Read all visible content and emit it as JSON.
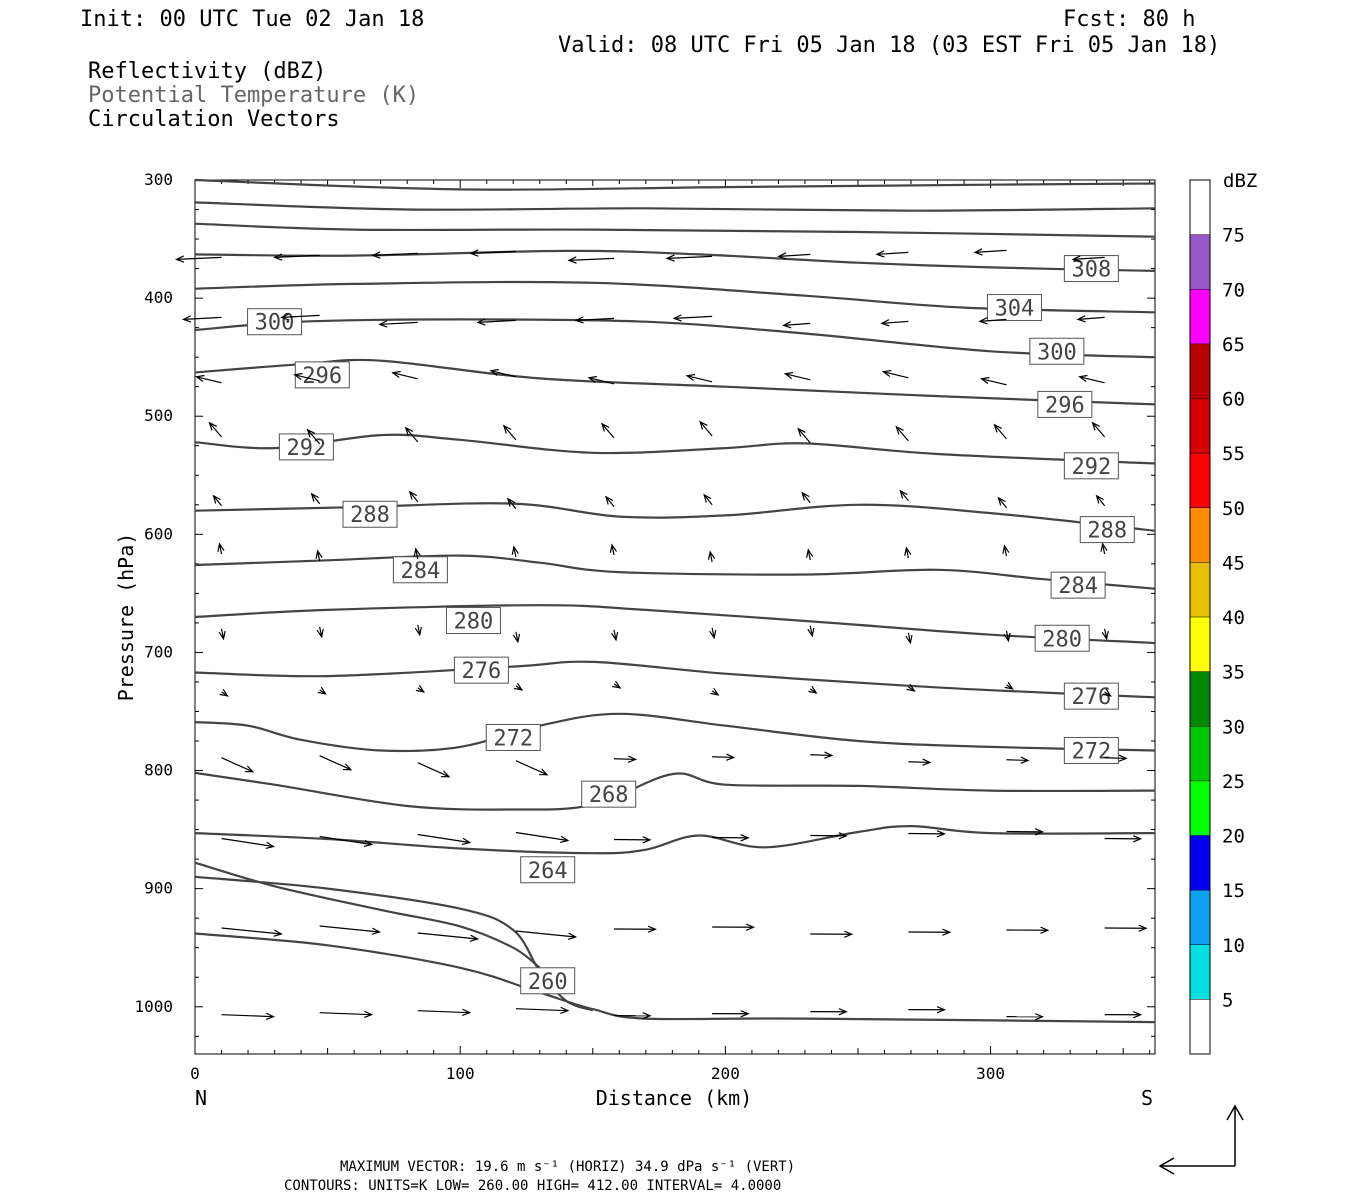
{
  "header": {
    "init": "Init: 00 UTC Tue 02 Jan 18",
    "fcst": "Fcst:   80 h",
    "valid": "Valid: 08 UTC Fri 05 Jan 18 (03 EST Fri 05 Jan 18)",
    "field1": "Reflectivity (dBZ)",
    "field2": "Potential Temperature (K)",
    "field3": "Circulation Vectors"
  },
  "footer": {
    "line1": "MAXIMUM VECTOR:  19.6 m s⁻¹ (HORIZ)        34.9 dPa s⁻¹ (VERT)",
    "line2": "CONTOURS:  UNITS=K  LOW=  260.00       HIGH=  412.00       INTERVAL=    4.0000"
  },
  "colorbar": {
    "unit": "dBZ",
    "levels": [
      5,
      10,
      15,
      20,
      25,
      30,
      35,
      40,
      45,
      50,
      55,
      60,
      65,
      70,
      75
    ],
    "colors": [
      "#ffffff",
      "#00e0e0",
      "#10a0f0",
      "#0000f0",
      "#00ff00",
      "#00c800",
      "#008800",
      "#ffff00",
      "#e8c000",
      "#ff8c00",
      "#ff0000",
      "#d40000",
      "#b80000",
      "#ff00ff",
      "#9958c8",
      "#ffffff"
    ]
  },
  "chart_data": {
    "type": "line",
    "xlabel": "Distance (km)",
    "ylabel": "Pressure (hPa)",
    "xlim": [
      0,
      362
    ],
    "ylim": [
      1040,
      300
    ],
    "x_ticks": [
      0,
      100,
      200,
      300
    ],
    "y_ticks": [
      300,
      400,
      500,
      600,
      700,
      800,
      900,
      1000
    ],
    "x_end_labels": {
      "left": "N",
      "right": "S"
    },
    "series": [
      {
        "label": "",
        "points": [
          [
            0,
            300
          ],
          [
            100,
            308
          ],
          [
            200,
            306
          ],
          [
            300,
            304
          ],
          [
            362,
            303
          ]
        ]
      },
      {
        "label": "",
        "points": [
          [
            0,
            319
          ],
          [
            80,
            325
          ],
          [
            170,
            324
          ],
          [
            270,
            326
          ],
          [
            362,
            324
          ]
        ]
      },
      {
        "label": "",
        "points": [
          [
            0,
            337
          ],
          [
            60,
            342
          ],
          [
            150,
            342
          ],
          [
            250,
            344
          ],
          [
            362,
            348
          ]
        ]
      },
      {
        "label": "308",
        "label_at": [
          338,
          375
        ],
        "points": [
          [
            0,
            363
          ],
          [
            60,
            364
          ],
          [
            140,
            360
          ],
          [
            190,
            363
          ],
          [
            250,
            370
          ],
          [
            300,
            374
          ],
          [
            362,
            377
          ]
        ]
      },
      {
        "label": "304",
        "label_at": [
          309,
          408
        ],
        "points": [
          [
            0,
            392
          ],
          [
            60,
            388
          ],
          [
            150,
            387
          ],
          [
            230,
            398
          ],
          [
            290,
            408
          ],
          [
            362,
            412
          ]
        ]
      },
      {
        "label": "300",
        "label_at": [
          30,
          420
        ],
        "label2": "300",
        "label2_at": [
          325,
          445
        ],
        "points": [
          [
            0,
            427
          ],
          [
            40,
            420
          ],
          [
            100,
            418
          ],
          [
            170,
            420
          ],
          [
            230,
            430
          ],
          [
            300,
            445
          ],
          [
            362,
            450
          ]
        ]
      },
      {
        "label": "296",
        "label_at": [
          48,
          465
        ],
        "label2": "296",
        "label2_at": [
          328,
          490
        ],
        "points": [
          [
            0,
            463
          ],
          [
            40,
            456
          ],
          [
            70,
            453
          ],
          [
            130,
            468
          ],
          [
            200,
            475
          ],
          [
            280,
            483
          ],
          [
            362,
            490
          ]
        ]
      },
      {
        "label": "292",
        "label_at": [
          42,
          526
        ],
        "label2": "292",
        "label2_at": [
          338,
          542
        ],
        "points": [
          [
            0,
            522
          ],
          [
            30,
            527
          ],
          [
            70,
            516
          ],
          [
            100,
            520
          ],
          [
            150,
            531
          ],
          [
            200,
            527
          ],
          [
            230,
            523
          ],
          [
            280,
            532
          ],
          [
            362,
            540
          ]
        ]
      },
      {
        "label": "288",
        "label_at": [
          66,
          583
        ],
        "label2": "288",
        "label2_at": [
          344,
          596
        ],
        "points": [
          [
            0,
            580
          ],
          [
            60,
            577
          ],
          [
            120,
            574
          ],
          [
            160,
            585
          ],
          [
            200,
            584
          ],
          [
            250,
            575
          ],
          [
            300,
            582
          ],
          [
            362,
            597
          ]
        ]
      },
      {
        "label": "284",
        "label_at": [
          85,
          630
        ],
        "label2": "284",
        "label2_at": [
          333,
          643
        ],
        "points": [
          [
            0,
            626
          ],
          [
            50,
            622
          ],
          [
            100,
            618
          ],
          [
            130,
            624
          ],
          [
            160,
            632
          ],
          [
            230,
            634
          ],
          [
            280,
            630
          ],
          [
            320,
            638
          ],
          [
            362,
            646
          ]
        ]
      },
      {
        "label": "280",
        "label_at": [
          105,
          673
        ],
        "label2": "280",
        "label2_at": [
          327,
          688
        ],
        "points": [
          [
            0,
            670
          ],
          [
            50,
            664
          ],
          [
            130,
            660
          ],
          [
            170,
            664
          ],
          [
            240,
            675
          ],
          [
            300,
            685
          ],
          [
            362,
            692
          ]
        ]
      },
      {
        "label": "276",
        "label_at": [
          108,
          715
        ],
        "label2": "276",
        "label2_at": [
          338,
          737
        ],
        "points": [
          [
            0,
            717
          ],
          [
            50,
            720
          ],
          [
            120,
            712
          ],
          [
            150,
            708
          ],
          [
            200,
            718
          ],
          [
            260,
            727
          ],
          [
            300,
            732
          ],
          [
            362,
            738
          ]
        ]
      },
      {
        "label": "272",
        "label_at": [
          120,
          772
        ],
        "label2": "272",
        "label2_at": [
          338,
          783
        ],
        "points": [
          [
            0,
            759
          ],
          [
            20,
            762
          ],
          [
            40,
            774
          ],
          [
            70,
            783
          ],
          [
            100,
            780
          ],
          [
            130,
            762
          ],
          [
            160,
            752
          ],
          [
            200,
            762
          ],
          [
            250,
            775
          ],
          [
            300,
            780
          ],
          [
            362,
            783
          ]
        ]
      },
      {
        "label": "268",
        "label_at": [
          156,
          820
        ],
        "points": [
          [
            0,
            802
          ],
          [
            30,
            812
          ],
          [
            80,
            830
          ],
          [
            120,
            833
          ],
          [
            150,
            829
          ],
          [
            180,
            803
          ],
          [
            200,
            812
          ],
          [
            250,
            813
          ],
          [
            300,
            817
          ],
          [
            362,
            817
          ]
        ]
      },
      {
        "label": "264",
        "label_at": [
          133,
          884
        ],
        "points": [
          [
            0,
            853
          ],
          [
            50,
            858
          ],
          [
            100,
            866
          ],
          [
            150,
            870
          ],
          [
            170,
            867
          ],
          [
            190,
            855
          ],
          [
            215,
            865
          ],
          [
            250,
            852
          ],
          [
            270,
            847
          ],
          [
            300,
            853
          ],
          [
            362,
            853
          ]
        ]
      },
      {
        "label": "",
        "points": [
          [
            0,
            878
          ],
          [
            30,
            898
          ],
          [
            70,
            918
          ],
          [
            100,
            932
          ],
          [
            120,
            950
          ],
          [
            130,
            967
          ]
        ]
      },
      {
        "label": "",
        "points": [
          [
            0,
            890
          ],
          [
            50,
            900
          ],
          [
            100,
            917
          ],
          [
            120,
            935
          ],
          [
            130,
            970
          ],
          [
            140,
            995
          ],
          [
            150,
            1003
          ]
        ]
      },
      {
        "label": "260",
        "label_at": [
          133,
          978
        ],
        "points": [
          [
            0,
            938
          ],
          [
            50,
            948
          ],
          [
            100,
            967
          ],
          [
            130,
            988
          ],
          [
            150,
            1002
          ],
          [
            170,
            1010
          ],
          [
            230,
            1010
          ],
          [
            362,
            1013
          ]
        ]
      }
    ],
    "vectors_legend": {
      "max_vector_horiz": "19.6 m s-1",
      "max_vector_vert": "34.9 dPa s-1"
    }
  }
}
